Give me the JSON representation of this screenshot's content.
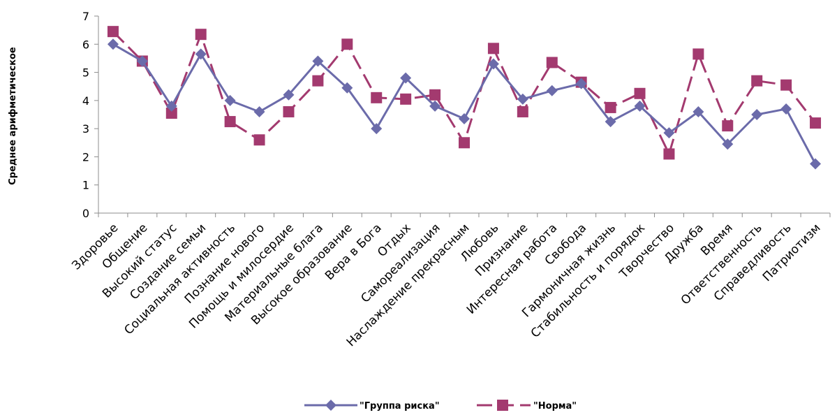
{
  "chart_data": {
    "type": "line",
    "title": "",
    "xlabel": "",
    "ylabel": "Среднее арифметическое",
    "ylim": [
      0,
      7
    ],
    "yticks": [
      "0",
      "1",
      "2",
      "3",
      "4",
      "5",
      "6",
      "7"
    ],
    "grid": false,
    "legend_position": "bottom",
    "categories": [
      "Здоровье",
      "Общение",
      "Высокий статус",
      "Создание семьи",
      "Социальная активность",
      "Познание нового",
      "Помощь и милосердие",
      "Материальные блага",
      "Высокое образование",
      "Вера в Бога",
      "Отдых",
      "Самореализация",
      "Наслаждение прекрасным",
      "Любовь",
      "Признание",
      "Интересная работа",
      "Свобода",
      "Гармоничная жизнь",
      "Стабильность и порядок",
      "Творчество",
      "Дружба",
      "Время",
      "Ответственность",
      "Справедливость",
      "Патриотизм"
    ],
    "series": [
      {
        "name": "\"Группа риска\"",
        "color": "#6b6baa",
        "marker": "diamond",
        "line_style": "solid",
        "values": [
          6.0,
          5.4,
          3.8,
          5.65,
          4.0,
          3.6,
          4.2,
          5.4,
          4.45,
          3.0,
          4.8,
          3.8,
          3.35,
          5.3,
          4.05,
          4.35,
          4.6,
          3.25,
          3.8,
          2.85,
          3.6,
          2.45,
          3.5,
          3.7,
          1.75
        ]
      },
      {
        "name": "\"Норма\"",
        "color": "#a33a6f",
        "marker": "square",
        "line_style": "dashed",
        "values": [
          6.45,
          5.4,
          3.55,
          6.35,
          3.25,
          2.6,
          3.6,
          4.7,
          6.0,
          4.1,
          4.05,
          4.2,
          2.5,
          5.85,
          3.6,
          5.35,
          4.65,
          3.75,
          4.25,
          2.1,
          5.65,
          3.1,
          4.7,
          4.55,
          3.2
        ]
      }
    ]
  }
}
